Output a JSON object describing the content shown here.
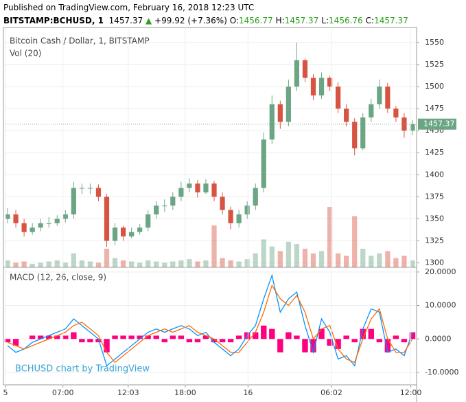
{
  "header": {
    "published": "Published on TradingView.com, February 16, 2018 12:23 UTC",
    "symbol": "BITSTAMP:BCHUSD, 1",
    "last": "1457.37",
    "arrow": "▲",
    "change": "+99.92 (+7.36%)",
    "ohlc": [
      {
        "label": "O:",
        "value": "1456.77"
      },
      {
        "label": "H:",
        "value": "1457.37"
      },
      {
        "label": "L:",
        "value": "1456.76"
      },
      {
        "label": "C:",
        "value": "1457.37"
      }
    ]
  },
  "chart_data": [
    {
      "type": "candlestick",
      "title": "Bitcoin Cash / Dollar, 1, BITSTAMP",
      "volume_label": "Vol (20)",
      "up_color": "#6ba583",
      "down_color": "#d75442",
      "grid": true,
      "ylim": [
        1295,
        1567
      ],
      "yticks": [
        1300,
        1325,
        1350,
        1375,
        1400,
        1425,
        1450,
        1475,
        1500,
        1525,
        1550
      ],
      "last_price": 1457.37,
      "open": [
        1350,
        1355,
        1345,
        1335,
        1340,
        1345,
        1345,
        1350,
        1355,
        1385,
        1385,
        1385,
        1375,
        1325,
        1340,
        1330,
        1335,
        1340,
        1355,
        1365,
        1365,
        1375,
        1385,
        1390,
        1380,
        1390,
        1375,
        1360,
        1345,
        1355,
        1365,
        1385,
        1440,
        1480,
        1460,
        1500,
        1530,
        1510,
        1490,
        1510,
        1500,
        1475,
        1460,
        1430,
        1465,
        1480,
        1500,
        1475,
        1465,
        1450
      ],
      "high": [
        1362,
        1360,
        1350,
        1345,
        1350,
        1352,
        1354,
        1360,
        1392,
        1390,
        1390,
        1389,
        1378,
        1345,
        1342,
        1340,
        1344,
        1360,
        1370,
        1372,
        1380,
        1392,
        1396,
        1394,
        1395,
        1393,
        1380,
        1364,
        1360,
        1370,
        1390,
        1448,
        1490,
        1484,
        1508,
        1550,
        1532,
        1514,
        1516,
        1512,
        1505,
        1480,
        1464,
        1470,
        1486,
        1508,
        1504,
        1478,
        1470,
        1462
      ],
      "low": [
        1345,
        1340,
        1330,
        1332,
        1336,
        1340,
        1342,
        1346,
        1350,
        1378,
        1378,
        1370,
        1318,
        1320,
        1325,
        1328,
        1332,
        1336,
        1350,
        1358,
        1360,
        1370,
        1380,
        1374,
        1378,
        1370,
        1355,
        1338,
        1340,
        1350,
        1360,
        1380,
        1435,
        1452,
        1455,
        1495,
        1505,
        1485,
        1486,
        1495,
        1470,
        1455,
        1422,
        1428,
        1460,
        1475,
        1470,
        1460,
        1442,
        1445
      ],
      "close": [
        1355,
        1345,
        1335,
        1340,
        1345,
        1345,
        1350,
        1355,
        1385,
        1385,
        1385,
        1375,
        1325,
        1340,
        1330,
        1335,
        1340,
        1355,
        1365,
        1365,
        1375,
        1385,
        1390,
        1380,
        1390,
        1375,
        1360,
        1345,
        1355,
        1365,
        1385,
        1440,
        1480,
        1460,
        1500,
        1530,
        1510,
        1490,
        1510,
        1500,
        1475,
        1460,
        1430,
        1465,
        1480,
        1500,
        1475,
        1465,
        1450,
        1457.37
      ],
      "volume": [
        30,
        20,
        25,
        15,
        20,
        25,
        30,
        20,
        60,
        30,
        25,
        20,
        80,
        40,
        30,
        25,
        20,
        30,
        25,
        20,
        25,
        30,
        35,
        25,
        30,
        180,
        40,
        30,
        25,
        35,
        60,
        120,
        90,
        70,
        110,
        100,
        80,
        60,
        70,
        260,
        60,
        50,
        220,
        80,
        50,
        60,
        70,
        40,
        50,
        30
      ]
    },
    {
      "type": "macd",
      "title": "MACD (12, 26, close, 9)",
      "watermark": "BCHUSD chart by TradingView",
      "grid": true,
      "ylim": [
        -13.7,
        21.4
      ],
      "yticks": [
        {
          "value": -10,
          "label": "-10.0000"
        },
        {
          "value": 0,
          "label": "0.0000"
        },
        {
          "value": 10,
          "label": "10.0000"
        },
        {
          "value": 20,
          "label": "20.0000"
        }
      ],
      "xticks": [
        {
          "value": -0.25,
          "label": "5"
        },
        {
          "value": 6.7,
          "label": "07:00"
        },
        {
          "value": 14.6,
          "label": "12:03"
        },
        {
          "value": 21.5,
          "label": "18:00"
        },
        {
          "value": 29.1,
          "label": "16"
        },
        {
          "value": 39.2,
          "label": "06:02"
        },
        {
          "value": 48.8,
          "label": "12:00"
        }
      ],
      "series": [
        {
          "color": "#0094ff",
          "values": [
            -2,
            -4,
            -3,
            -1,
            0,
            1,
            2,
            3,
            6,
            4,
            2,
            0,
            -8,
            -6,
            -4,
            -2,
            0,
            2,
            3,
            2,
            3,
            4,
            3,
            1,
            2,
            -1,
            -3,
            -5,
            -3,
            1,
            4,
            12,
            19,
            8,
            12,
            14,
            4,
            -4,
            6,
            2,
            -6,
            -5,
            -8,
            3,
            9,
            8,
            -4,
            -3,
            -5,
            2
          ]
        },
        {
          "color": "#ff6a00",
          "values": [
            -1,
            -2,
            -3,
            -2,
            -1,
            0,
            1,
            2,
            4,
            5,
            3,
            1,
            -4,
            -7,
            -5,
            -3,
            -1,
            1,
            2,
            3,
            2,
            3,
            4,
            2,
            1,
            0,
            -2,
            -4,
            -4,
            -1,
            2,
            8,
            16,
            12,
            10,
            13,
            8,
            0,
            3,
            4,
            -3,
            -6,
            -7,
            0,
            6,
            9,
            0,
            -4,
            -4,
            0
          ]
        }
      ],
      "histogram": {
        "color": "#ff0080",
        "values": [
          -1,
          -2,
          0,
          1,
          1,
          1,
          1,
          1,
          2,
          -1,
          -1,
          -1,
          -4,
          1,
          1,
          1,
          1,
          1,
          1,
          -1,
          1,
          1,
          -1,
          -1,
          1,
          -1,
          -1,
          -1,
          1,
          2,
          2,
          4,
          3,
          -4,
          2,
          1,
          -4,
          -4,
          3,
          -2,
          -3,
          1,
          -1,
          3,
          3,
          -1,
          -4,
          1,
          -1,
          2
        ]
      }
    }
  ]
}
